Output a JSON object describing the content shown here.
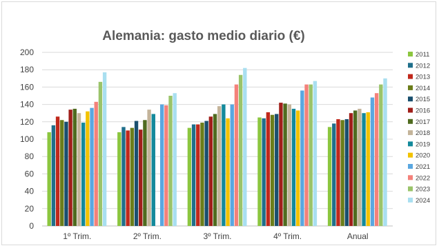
{
  "chart_data": {
    "type": "bar",
    "title": "Alemania: gasto medio diario (€)",
    "xlabel": "",
    "ylabel": "",
    "ylim": [
      0,
      200
    ],
    "yticks": [
      0,
      20,
      40,
      60,
      80,
      100,
      120,
      140,
      160,
      180,
      200
    ],
    "grid": true,
    "legend_position": "right",
    "categories": [
      "1º Trim.",
      "2º Trim.",
      "3º Trim.",
      "4º Trim.",
      "Anual"
    ],
    "series": [
      {
        "name": "2011",
        "color": "#8cc63f",
        "values": [
          108,
          108,
          113,
          125,
          114
        ]
      },
      {
        "name": "2012",
        "color": "#1f6f8b",
        "values": [
          116,
          114,
          117,
          124,
          118
        ]
      },
      {
        "name": "2013",
        "color": "#c0281b",
        "values": [
          126,
          110,
          117,
          131,
          123
        ]
      },
      {
        "name": "2014",
        "color": "#6b7d1a",
        "values": [
          122,
          113,
          119,
          128,
          122
        ]
      },
      {
        "name": "2015",
        "color": "#1a4f6e",
        "values": [
          120,
          121,
          121,
          129,
          123
        ]
      },
      {
        "name": "2016",
        "color": "#a01f1a",
        "values": [
          134,
          111,
          126,
          142,
          130
        ]
      },
      {
        "name": "2017",
        "color": "#4f6b1f",
        "values": [
          135,
          122,
          129,
          141,
          133
        ]
      },
      {
        "name": "2018",
        "color": "#c4b49a",
        "values": [
          130,
          134,
          138,
          140,
          135
        ]
      },
      {
        "name": "2019",
        "color": "#13899b",
        "values": [
          119,
          129,
          140,
          135,
          130
        ]
      },
      {
        "name": "2020",
        "color": "#f2c200",
        "values": [
          132,
          null,
          124,
          133,
          131
        ]
      },
      {
        "name": "2021",
        "color": "#5aa7e0",
        "values": [
          136,
          140,
          140,
          156,
          148
        ]
      },
      {
        "name": "2022",
        "color": "#f4817a",
        "values": [
          143,
          139,
          163,
          163,
          153
        ]
      },
      {
        "name": "2023",
        "color": "#9ac46a",
        "values": [
          166,
          150,
          174,
          163,
          163
        ]
      },
      {
        "name": "2024",
        "color": "#a9dff0",
        "values": [
          177,
          153,
          182,
          167,
          170
        ]
      }
    ]
  }
}
